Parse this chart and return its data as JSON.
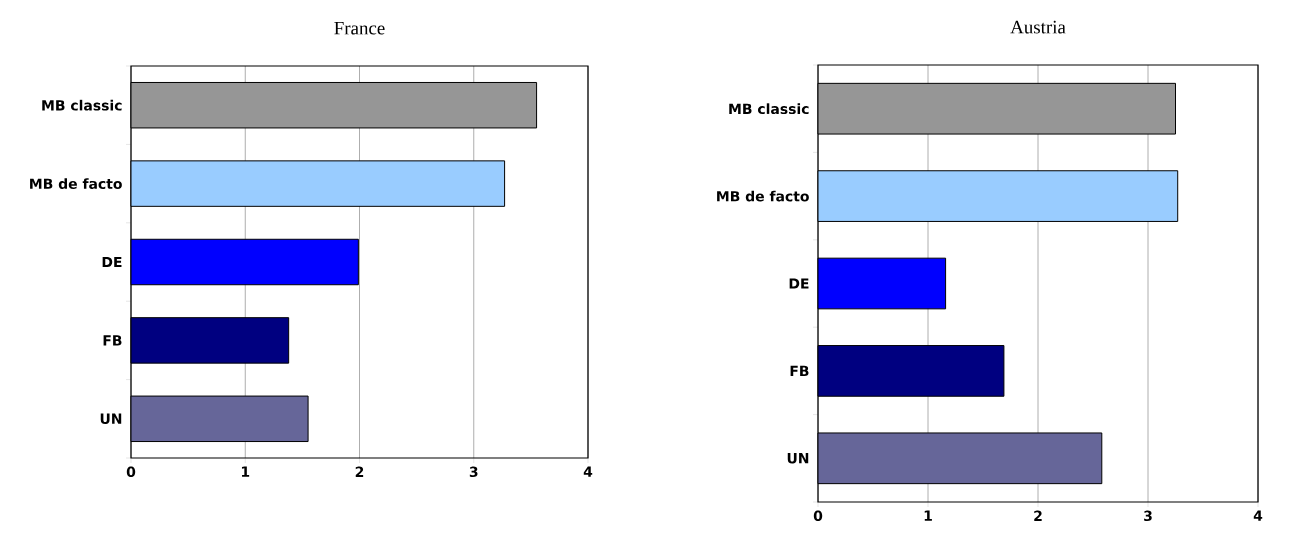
{
  "chart_data": [
    {
      "type": "bar",
      "orientation": "horizontal",
      "title": "France",
      "categories": [
        "MB classic",
        "MB de facto",
        "DE",
        "FB",
        "UN"
      ],
      "values": [
        3.55,
        3.27,
        1.99,
        1.38,
        1.55
      ],
      "colors": [
        "#969696",
        "#99ccff",
        "#0000ff",
        "#000080",
        "#666699"
      ],
      "xlim": [
        0,
        4
      ],
      "xticks": [
        0,
        1,
        2,
        3,
        4
      ],
      "grid": "x"
    },
    {
      "type": "bar",
      "orientation": "horizontal",
      "title": "Austria",
      "categories": [
        "MB classic",
        "MB de facto",
        "DE",
        "FB",
        "UN"
      ],
      "values": [
        3.25,
        3.27,
        1.16,
        1.69,
        2.58
      ],
      "colors": [
        "#969696",
        "#99ccff",
        "#0000ff",
        "#000080",
        "#666699"
      ],
      "xlim": [
        0,
        4
      ],
      "xticks": [
        0,
        1,
        2,
        3,
        4
      ],
      "grid": "x"
    }
  ]
}
